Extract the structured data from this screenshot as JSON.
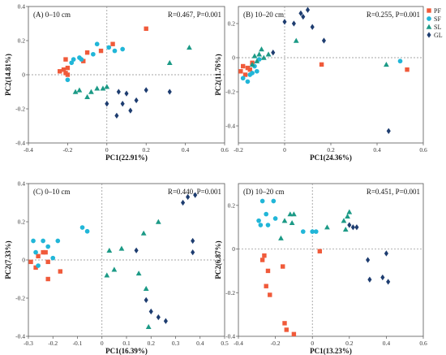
{
  "chart_data": [
    {
      "type": "scatter",
      "title": "(A) 0–10 cm",
      "stat": "R=0.467, P=0.001",
      "xlabel": "PC1(22.91%)",
      "ylabel": "PC2(14.81%)",
      "xlim": [
        -0.4,
        0.6
      ],
      "ylim": [
        -0.4,
        0.4
      ],
      "xticks": [
        "-0.4",
        "-0.2",
        "0",
        "0.2",
        "0.4",
        "0.6"
      ],
      "yticks": [
        "-0.4",
        "-0.2",
        "0",
        "0.2",
        "0.4"
      ],
      "series": [
        {
          "name": "PF",
          "points": [
            [
              -0.24,
              0.02
            ],
            [
              -0.22,
              0.03
            ],
            [
              -0.21,
              0.09
            ],
            [
              -0.2,
              0.04
            ],
            [
              -0.21,
              0.01
            ],
            [
              -0.2,
              0.0
            ],
            [
              -0.12,
              0.08
            ],
            [
              -0.1,
              0.13
            ],
            [
              -0.03,
              0.14
            ],
            [
              0.03,
              0.18
            ],
            [
              0.2,
              0.27
            ]
          ]
        },
        {
          "name": "SF",
          "points": [
            [
              -0.2,
              -0.03
            ],
            [
              -0.18,
              0.07
            ],
            [
              -0.17,
              0.09
            ],
            [
              -0.14,
              0.1
            ],
            [
              -0.13,
              0.09
            ],
            [
              -0.07,
              0.12
            ],
            [
              -0.05,
              0.18
            ],
            [
              0.01,
              0.16
            ],
            [
              0.04,
              0.14
            ],
            [
              0.08,
              0.15
            ]
          ]
        },
        {
          "name": "SL",
          "points": [
            [
              -0.16,
              -0.1
            ],
            [
              -0.14,
              -0.09
            ],
            [
              -0.1,
              -0.13
            ],
            [
              -0.08,
              -0.1
            ],
            [
              -0.05,
              -0.08
            ],
            [
              -0.02,
              -0.08
            ],
            [
              0.0,
              -0.07
            ],
            [
              0.32,
              0.07
            ],
            [
              0.42,
              0.16
            ]
          ]
        },
        {
          "name": "GL",
          "points": [
            [
              0.0,
              -0.17
            ],
            [
              0.05,
              -0.24
            ],
            [
              0.06,
              -0.1
            ],
            [
              0.08,
              -0.17
            ],
            [
              0.1,
              -0.11
            ],
            [
              0.12,
              -0.21
            ],
            [
              0.15,
              -0.15
            ],
            [
              0.2,
              -0.09
            ],
            [
              0.32,
              -0.1
            ]
          ]
        }
      ]
    },
    {
      "type": "scatter",
      "title": "(B) 10–20 cm",
      "stat": "R=0.255, P=0.001",
      "xlabel": "PC1(24.36%)",
      "ylabel": "PC2(11.76%)",
      "xlim": [
        -0.2,
        0.6
      ],
      "ylim": [
        -0.5,
        0.3
      ],
      "xticks": [
        "-0.2",
        "0",
        "0.2",
        "0.4",
        "0.6"
      ],
      "yticks": [
        "-0.4",
        "-0.2",
        "0",
        "0.2"
      ],
      "series": [
        {
          "name": "PF",
          "points": [
            [
              -0.19,
              -0.08
            ],
            [
              -0.18,
              -0.05
            ],
            [
              -0.17,
              -0.1
            ],
            [
              -0.16,
              -0.06
            ],
            [
              -0.15,
              -0.07
            ],
            [
              -0.14,
              -0.03
            ],
            [
              0.16,
              -0.04
            ],
            [
              0.53,
              -0.07
            ]
          ]
        },
        {
          "name": "SF",
          "points": [
            [
              -0.18,
              -0.12
            ],
            [
              -0.16,
              -0.14
            ],
            [
              -0.15,
              -0.1
            ],
            [
              -0.14,
              -0.09
            ],
            [
              -0.13,
              -0.05
            ],
            [
              -0.12,
              -0.08
            ],
            [
              -0.11,
              -0.01
            ],
            [
              0.5,
              -0.02
            ]
          ]
        },
        {
          "name": "SL",
          "points": [
            [
              -0.14,
              -0.04
            ],
            [
              -0.13,
              0.01
            ],
            [
              -0.12,
              -0.02
            ],
            [
              -0.11,
              0.02
            ],
            [
              -0.1,
              0.05
            ],
            [
              -0.09,
              0.0
            ],
            [
              -0.07,
              0.02
            ],
            [
              0.05,
              0.1
            ],
            [
              0.44,
              -0.04
            ]
          ]
        },
        {
          "name": "GL",
          "points": [
            [
              -0.05,
              0.03
            ],
            [
              0.0,
              0.21
            ],
            [
              0.04,
              0.2
            ],
            [
              0.07,
              0.26
            ],
            [
              0.08,
              0.24
            ],
            [
              0.1,
              0.28
            ],
            [
              0.12,
              0.18
            ],
            [
              0.17,
              0.1
            ],
            [
              0.45,
              -0.43
            ]
          ]
        }
      ]
    },
    {
      "type": "scatter",
      "title": "(C) 0–10 cm",
      "stat": "R=0.440, P=0.001",
      "xlabel": "PC1(16.39%)",
      "ylabel": "PC2(7.33%)",
      "xlim": [
        -0.3,
        0.5
      ],
      "ylim": [
        -0.4,
        0.4
      ],
      "xticks": [
        "-0.3",
        "-0.2",
        "-0.1",
        "0",
        "0.1",
        "0.2",
        "0.3",
        "0.4",
        "0.5"
      ],
      "yticks": [
        "-0.4",
        "-0.2",
        "0",
        "0.2",
        "0.4"
      ],
      "series": [
        {
          "name": "PF",
          "points": [
            [
              -0.29,
              -0.01
            ],
            [
              -0.27,
              -0.04
            ],
            [
              -0.26,
              0.02
            ],
            [
              -0.24,
              0.04
            ],
            [
              -0.23,
              0.04
            ],
            [
              -0.22,
              -0.01
            ],
            [
              -0.22,
              -0.1
            ],
            [
              -0.17,
              -0.06
            ]
          ]
        },
        {
          "name": "SF",
          "points": [
            [
              -0.28,
              0.1
            ],
            [
              -0.27,
              0.04
            ],
            [
              -0.26,
              -0.03
            ],
            [
              -0.24,
              0.1
            ],
            [
              -0.22,
              0.07
            ],
            [
              -0.2,
              0.01
            ],
            [
              -0.18,
              0.1
            ],
            [
              -0.08,
              0.17
            ],
            [
              -0.06,
              0.15
            ]
          ]
        },
        {
          "name": "SL",
          "points": [
            [
              0.02,
              -0.08
            ],
            [
              0.03,
              0.05
            ],
            [
              0.05,
              -0.05
            ],
            [
              0.08,
              0.06
            ],
            [
              0.15,
              -0.07
            ],
            [
              0.17,
              0.14
            ],
            [
              0.18,
              -0.15
            ],
            [
              0.19,
              -0.35
            ],
            [
              0.23,
              0.2
            ]
          ]
        },
        {
          "name": "GL",
          "points": [
            [
              0.14,
              0.05
            ],
            [
              0.18,
              -0.21
            ],
            [
              0.2,
              -0.27
            ],
            [
              0.23,
              -0.3
            ],
            [
              0.26,
              -0.32
            ],
            [
              0.33,
              0.3
            ],
            [
              0.35,
              0.33
            ],
            [
              0.37,
              0.1
            ],
            [
              0.37,
              0.04
            ],
            [
              0.38,
              0.34
            ]
          ]
        }
      ]
    },
    {
      "type": "scatter",
      "title": "(D) 10–20 cm",
      "stat": "R=0.451, P=0.001",
      "xlabel": "PC1(13.23%)",
      "ylabel": "PC2(6.87%)",
      "xlim": [
        -0.4,
        0.6
      ],
      "ylim": [
        -0.4,
        0.3
      ],
      "xticks": [
        "-0.4",
        "-0.2",
        "0",
        "0.2",
        "0.4",
        "0.6"
      ],
      "yticks": [
        "-0.4",
        "-0.2",
        "0",
        "0.2"
      ],
      "series": [
        {
          "name": "PF",
          "points": [
            [
              -0.27,
              -0.05
            ],
            [
              -0.26,
              -0.03
            ],
            [
              -0.25,
              -0.17
            ],
            [
              -0.24,
              -0.1
            ],
            [
              -0.23,
              -0.21
            ],
            [
              -0.16,
              -0.08
            ],
            [
              -0.15,
              -0.34
            ],
            [
              -0.14,
              -0.37
            ],
            [
              -0.1,
              -0.39
            ],
            [
              0.04,
              -0.01
            ]
          ]
        },
        {
          "name": "SF",
          "points": [
            [
              -0.29,
              0.13
            ],
            [
              -0.28,
              0.11
            ],
            [
              -0.27,
              0.22
            ],
            [
              -0.25,
              0.16
            ],
            [
              -0.24,
              0.11
            ],
            [
              -0.21,
              0.22
            ],
            [
              -0.2,
              0.14
            ],
            [
              -0.05,
              0.08
            ],
            [
              0.0,
              0.08
            ],
            [
              0.02,
              0.08
            ]
          ]
        },
        {
          "name": "SL",
          "points": [
            [
              -0.17,
              0.05
            ],
            [
              -0.15,
              0.13
            ],
            [
              -0.12,
              0.16
            ],
            [
              -0.11,
              0.12
            ],
            [
              -0.1,
              0.16
            ],
            [
              0.08,
              0.1
            ],
            [
              0.17,
              0.13
            ],
            [
              0.18,
              0.09
            ],
            [
              0.19,
              0.15
            ],
            [
              0.2,
              0.17
            ]
          ]
        },
        {
          "name": "GL",
          "points": [
            [
              0.2,
              0.11
            ],
            [
              0.22,
              0.1
            ],
            [
              0.24,
              0.1
            ],
            [
              0.3,
              -0.05
            ],
            [
              0.31,
              -0.14
            ],
            [
              0.38,
              -0.13
            ],
            [
              0.4,
              -0.02
            ],
            [
              0.41,
              -0.15
            ]
          ]
        }
      ]
    }
  ],
  "legend": {
    "placement": "top-right",
    "items": [
      {
        "name": "PF",
        "color": "#f05a3a",
        "shape": "square"
      },
      {
        "name": "SF",
        "color": "#21b6d8",
        "shape": "circle"
      },
      {
        "name": "SL",
        "color": "#1c9a86",
        "shape": "triangle"
      },
      {
        "name": "GL",
        "color": "#1e3d70",
        "shape": "diamond"
      }
    ]
  }
}
